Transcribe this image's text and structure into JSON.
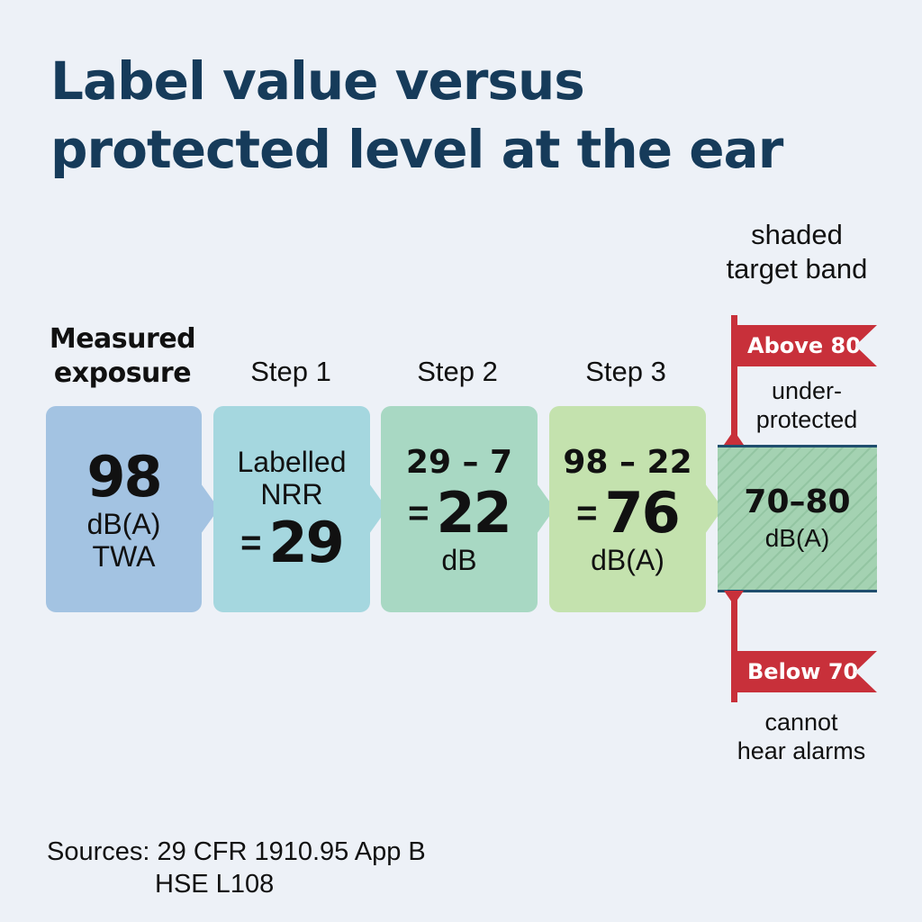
{
  "title": {
    "line1": "Label value versus",
    "line2": "protected level at the ear"
  },
  "band_header": {
    "line1": "shaded",
    "line2": "target band"
  },
  "columns": {
    "measured": {
      "header_line1": "Measured",
      "header_line2": "exposure",
      "value": "98",
      "unit_line1": "dB(A)",
      "unit_line2": "TWA",
      "color": "#a3c3e2"
    },
    "step1": {
      "header": "Step 1",
      "text_line1": "Labelled",
      "text_line2": "NRR",
      "eq": "=",
      "value": "29",
      "color": "#a5d7df"
    },
    "step2": {
      "header": "Step 2",
      "expr": "29 – 7",
      "eq": "=",
      "value": "22",
      "unit": "dB",
      "color": "#a8d8c3"
    },
    "step3": {
      "header": "Step 3",
      "expr": "98 – 22",
      "eq": "=",
      "value": "76",
      "unit": "dB(A)",
      "color": "#c4e2ae"
    }
  },
  "target_band": {
    "value": "70–80",
    "unit": "dB(A)",
    "color": "#a4d2b2"
  },
  "flags": {
    "above": {
      "label": "Above 80",
      "note_line1": "under-",
      "note_line2": "protected",
      "color": "#c8303a"
    },
    "below": {
      "label": "Below 70",
      "note_line1": "cannot",
      "note_line2": "hear alarms",
      "color": "#c8303a"
    }
  },
  "sources": {
    "line1": "Sources: 29 CFR 1910.95 App B",
    "line2": "HSE L108"
  }
}
